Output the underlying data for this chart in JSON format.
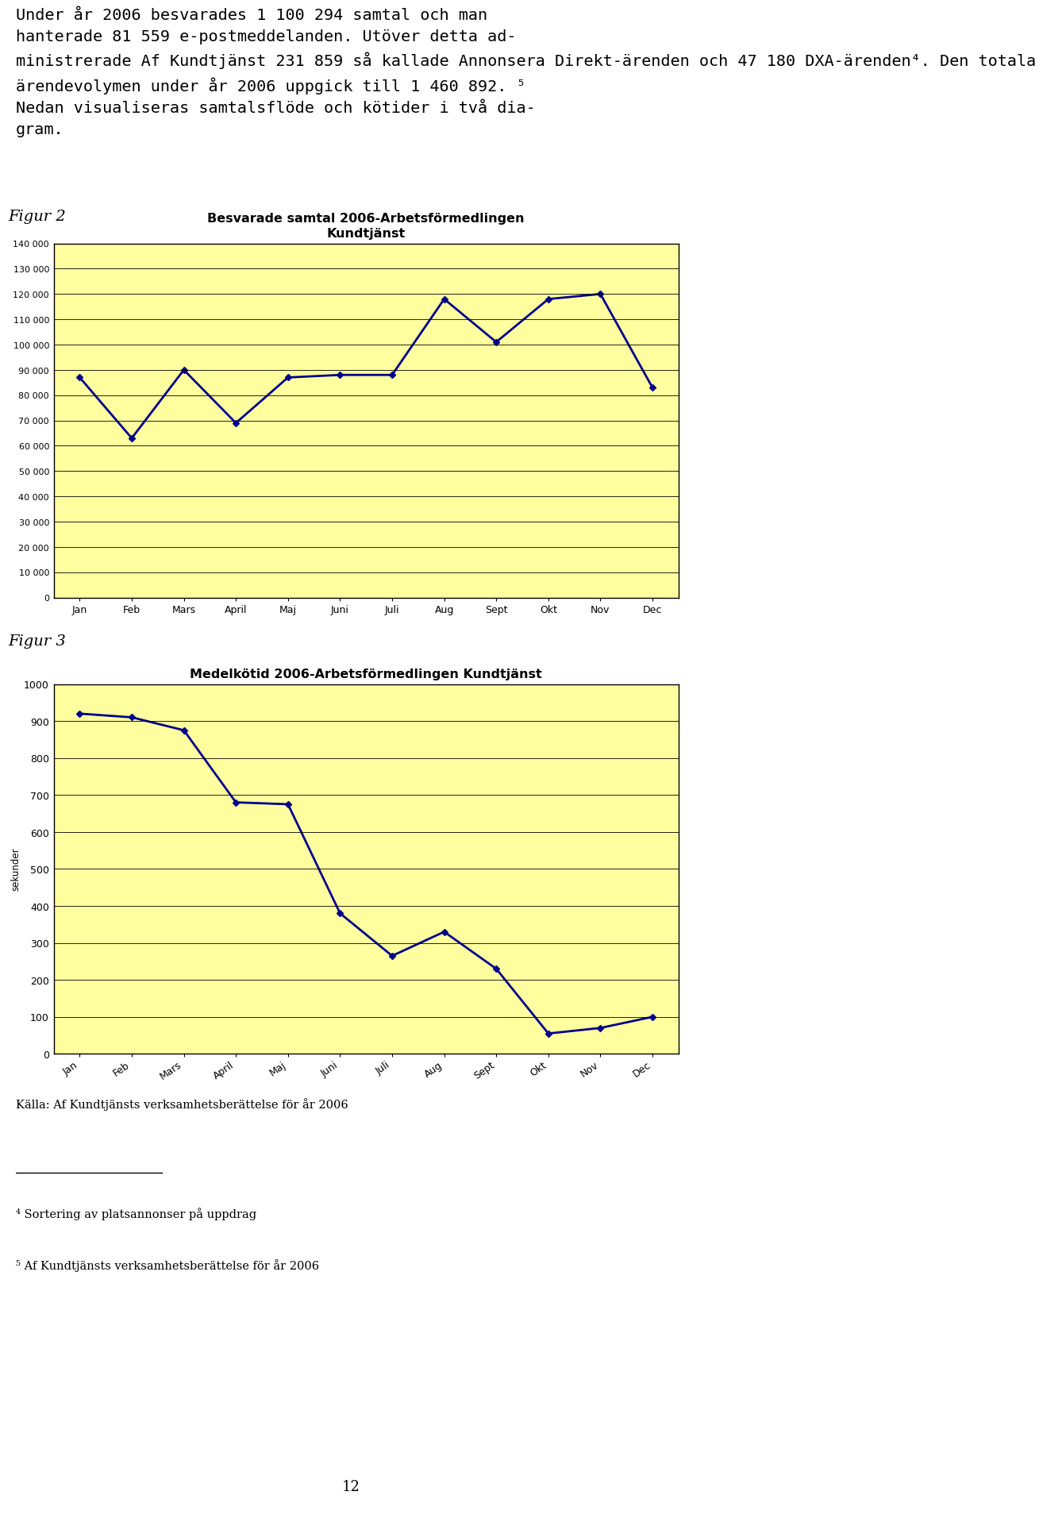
{
  "figur2_label": "Figur 2",
  "figur3_label": "Figur 3",
  "fig2_title_line1": "Besvarade samtal 2006-Arbetsförmedlingen",
  "fig2_title_line2": "Kundtjänst",
  "fig3_title": "Medelkötid 2006-Arbetsförmedlingen Kundtjänst",
  "months": [
    "Jan",
    "Feb",
    "Mars",
    "April",
    "Maj",
    "Juni",
    "Juli",
    "Aug",
    "Sept",
    "Okt",
    "Nov",
    "Dec"
  ],
  "fig2_values": [
    87000,
    63000,
    90000,
    69000,
    87000,
    88000,
    88000,
    118000,
    101000,
    118000,
    120000,
    83000
  ],
  "fig2_ylim": [
    0,
    140000
  ],
  "fig2_yticks": [
    0,
    10000,
    20000,
    30000,
    40000,
    50000,
    60000,
    70000,
    80000,
    90000,
    100000,
    110000,
    120000,
    130000,
    140000
  ],
  "fig3_values": [
    920,
    910,
    875,
    680,
    675,
    380,
    265,
    330,
    230,
    55,
    70,
    100
  ],
  "fig3_ylim": [
    0,
    1000
  ],
  "fig3_yticks": [
    0,
    100,
    200,
    300,
    400,
    500,
    600,
    700,
    800,
    900,
    1000
  ],
  "fig3_ylabel": "sekunder",
  "line_color": "#00008B",
  "bg_color": "#FFFFA0",
  "outer_bg": "#FFFFFF",
  "source_text": "Källa: Af Kundtjänsts verksamhetsberättelse för år 2006",
  "page_number": "12",
  "text_para": [
    "Under år 2006 besvarades 1 100 294 samtal och man",
    "hanterade 81 559 e-postmeddelanden. Utöver detta ad-",
    "ministrerade Af Kundtjänst 231 859 så kallade Annonsera Direkt-ärenden och 47 180 DXA-ärenden⁴. Den totala",
    "ärendevolymen under år 2006 uppgick till 1 460 892.⁵",
    "Nedan visualiseras samtalsflöde och kötider i två dia-",
    "gram."
  ]
}
